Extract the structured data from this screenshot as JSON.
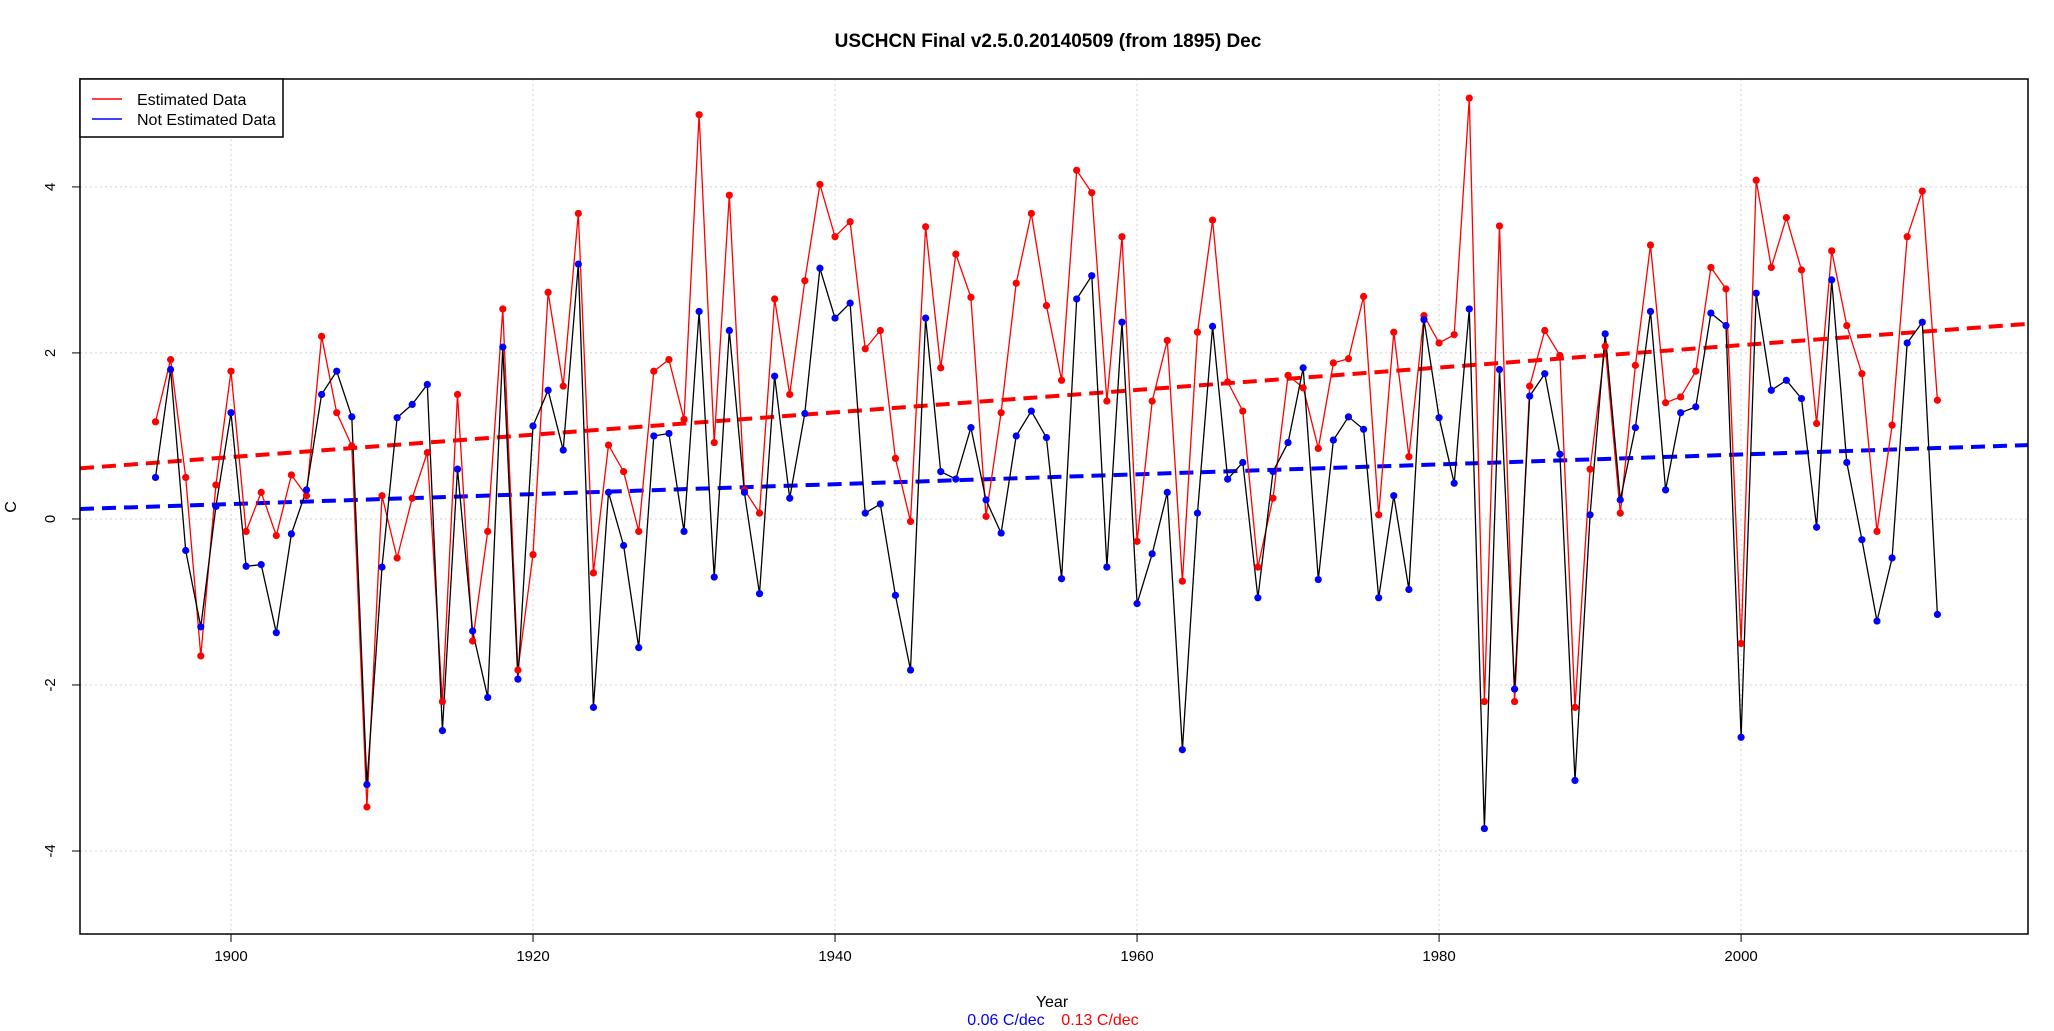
{
  "chart_data": {
    "type": "line",
    "title": "USCHCN Final v2.5.0.20140509 (from 1895) Dec",
    "xlabel": "Year",
    "ylabel": "C",
    "xlim": [
      1890,
      2019
    ],
    "ylim": [
      -5,
      5.3
    ],
    "xticks": [
      1900,
      1920,
      1940,
      1960,
      1980,
      2000
    ],
    "xtick_labels": [
      "1900",
      "1920",
      "1940",
      "1960",
      "1980",
      "2000"
    ],
    "yticks": [
      -4,
      -2,
      0,
      2,
      4
    ],
    "ytick_labels": [
      "-4",
      "-2",
      "0",
      "2",
      "4"
    ],
    "grid": true,
    "legend": {
      "position": "top-left",
      "entries": [
        {
          "label": "Estimated Data",
          "color": "#ff0000"
        },
        {
          "label": "Not Estimated Data",
          "color": "#0000ff"
        }
      ]
    },
    "x": [
      1895,
      1896,
      1897,
      1898,
      1899,
      1900,
      1901,
      1902,
      1903,
      1904,
      1905,
      1906,
      1907,
      1908,
      1909,
      1910,
      1911,
      1912,
      1913,
      1914,
      1915,
      1916,
      1917,
      1918,
      1919,
      1920,
      1921,
      1922,
      1923,
      1924,
      1925,
      1926,
      1927,
      1928,
      1929,
      1930,
      1931,
      1932,
      1933,
      1934,
      1935,
      1936,
      1937,
      1938,
      1939,
      1940,
      1941,
      1942,
      1943,
      1944,
      1945,
      1946,
      1947,
      1948,
      1949,
      1950,
      1951,
      1952,
      1953,
      1954,
      1955,
      1956,
      1957,
      1958,
      1959,
      1960,
      1961,
      1962,
      1963,
      1964,
      1965,
      1966,
      1967,
      1968,
      1969,
      1970,
      1971,
      1972,
      1973,
      1974,
      1975,
      1976,
      1977,
      1978,
      1979,
      1980,
      1981,
      1982,
      1983,
      1984,
      1985,
      1986,
      1987,
      1988,
      1989,
      1990,
      1991,
      1992,
      1993,
      1994,
      1995,
      1996,
      1997,
      1998,
      1999,
      2000,
      2001,
      2002,
      2003,
      2004,
      2005,
      2006,
      2007,
      2008,
      2009,
      2010,
      2011,
      2012,
      2013
    ],
    "series": [
      {
        "name": "Estimated Data",
        "color": "#ff0000",
        "values": [
          1.17,
          1.92,
          0.5,
          -1.65,
          0.41,
          1.78,
          -0.15,
          0.32,
          -0.2,
          0.53,
          0.28,
          2.2,
          1.28,
          0.88,
          -3.47,
          0.28,
          -0.47,
          0.25,
          0.8,
          -2.2,
          1.5,
          -1.47,
          -0.15,
          2.53,
          -1.82,
          -0.43,
          2.73,
          1.6,
          3.68,
          -0.65,
          0.89,
          0.57,
          -0.15,
          1.78,
          1.92,
          1.2,
          4.87,
          0.92,
          3.9,
          0.35,
          0.07,
          2.65,
          1.5,
          2.87,
          4.03,
          3.4,
          3.58,
          2.05,
          2.27,
          0.73,
          -0.03,
          3.52,
          1.82,
          3.19,
          2.67,
          0.03,
          1.28,
          2.84,
          3.68,
          2.57,
          1.67,
          4.2,
          3.93,
          1.42,
          3.4,
          -0.27,
          1.42,
          2.15,
          -0.75,
          2.25,
          3.6,
          1.65,
          1.3,
          -0.58,
          0.25,
          1.73,
          1.58,
          0.85,
          1.88,
          1.93,
          2.68,
          0.05,
          2.25,
          0.75,
          2.45,
          2.12,
          2.22,
          5.07,
          -2.2,
          3.53,
          -2.2,
          1.6,
          2.27,
          1.97,
          -2.27,
          0.6,
          2.08,
          0.07,
          1.85,
          3.3,
          1.4,
          1.47,
          1.78,
          3.03,
          2.77,
          -1.5,
          4.08,
          3.03,
          3.63,
          3.0,
          1.15,
          3.23,
          2.33,
          1.75,
          -0.15,
          1.13,
          3.4,
          3.95,
          1.43
        ]
      },
      {
        "name": "Not Estimated Data",
        "color": "#0000ff",
        "values": [
          0.5,
          1.8,
          -0.38,
          -1.3,
          0.15,
          1.28,
          -0.57,
          -0.55,
          -1.37,
          -0.18,
          0.35,
          1.5,
          1.78,
          1.23,
          -3.2,
          -0.58,
          1.22,
          1.38,
          1.62,
          -2.55,
          0.6,
          -1.35,
          -2.15,
          2.07,
          -1.93,
          1.12,
          1.55,
          0.83,
          3.07,
          -2.27,
          0.32,
          -0.32,
          -1.55,
          1.0,
          1.03,
          -0.15,
          2.5,
          -0.7,
          2.27,
          0.32,
          -0.9,
          1.72,
          0.25,
          1.27,
          3.02,
          2.42,
          2.6,
          0.07,
          0.18,
          -0.92,
          -1.82,
          2.42,
          0.57,
          0.48,
          1.1,
          0.23,
          -0.17,
          1.0,
          1.3,
          0.98,
          -0.72,
          2.65,
          2.93,
          -0.58,
          2.37,
          -1.02,
          -0.42,
          0.32,
          -2.78,
          0.07,
          2.32,
          0.48,
          0.68,
          -0.95,
          0.57,
          0.92,
          1.82,
          -0.73,
          0.95,
          1.23,
          1.08,
          -0.95,
          0.28,
          -0.85,
          2.4,
          1.22,
          0.43,
          2.53,
          -3.73,
          1.8,
          -2.05,
          1.48,
          1.75,
          0.78,
          -3.15,
          0.05,
          2.23,
          0.23,
          1.1,
          2.5,
          0.35,
          1.28,
          1.35,
          2.48,
          2.33,
          -2.63,
          2.72,
          1.55,
          1.67,
          1.45,
          -0.1,
          2.88,
          0.68,
          -0.25,
          -1.23,
          -0.47,
          2.12,
          2.37,
          -1.15
        ]
      }
    ],
    "trendlines": [
      {
        "name": "Estimated trend",
        "color": "#ff0000",
        "x": [
          1890,
          2019
        ],
        "y": [
          0.61,
          2.35
        ]
      },
      {
        "name": "Not Estimated trend",
        "color": "#0000ff",
        "x": [
          1890,
          2019
        ],
        "y": [
          0.12,
          0.89
        ]
      }
    ],
    "rates": [
      {
        "label": "0.06 C/dec",
        "color": "#0000ff"
      },
      {
        "label": "0.13 C/dec",
        "color": "#ff0000"
      }
    ]
  }
}
